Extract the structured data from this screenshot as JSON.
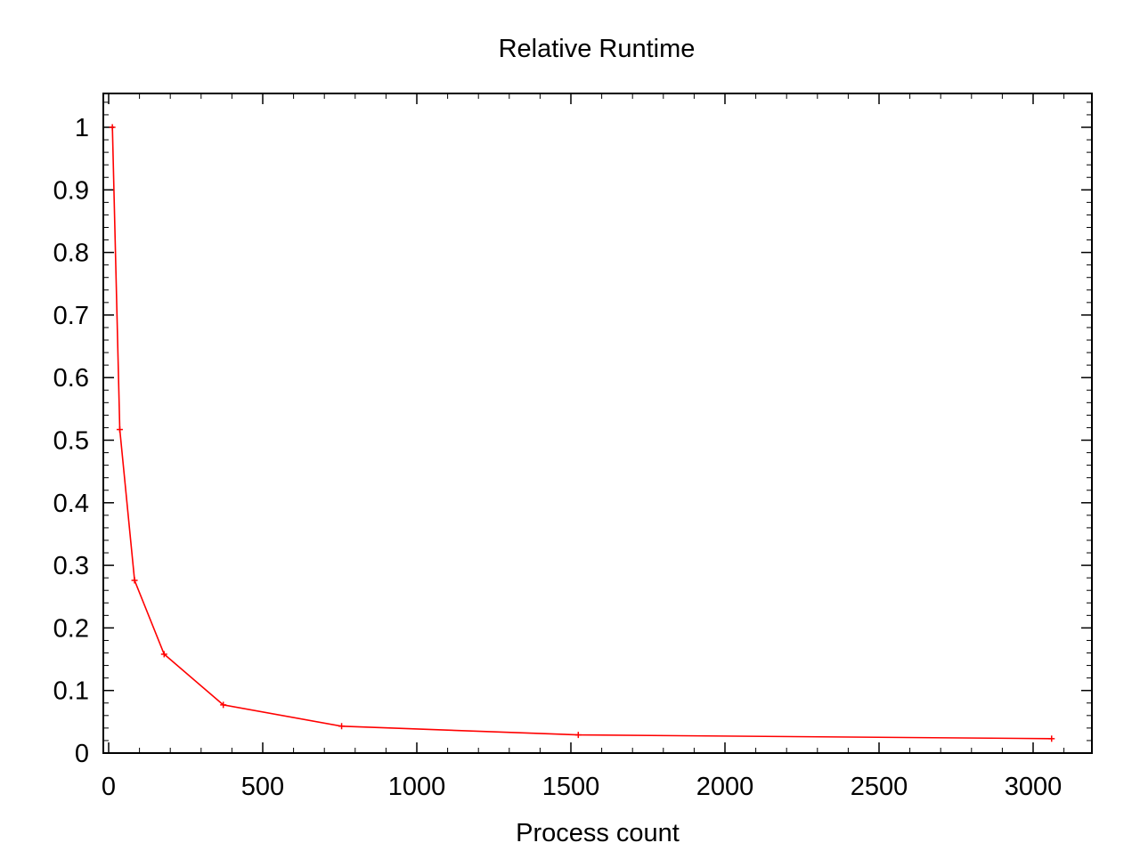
{
  "chart_data": {
    "type": "line",
    "title": "Relative Runtime",
    "xlabel": "Process count",
    "ylabel": "",
    "xlim": [
      0,
      3200
    ],
    "ylim": [
      0,
      1.05
    ],
    "grid": false,
    "x_ticks": [
      0,
      500,
      1000,
      1500,
      2000,
      2500,
      3000
    ],
    "x_tick_labels": [
      "0",
      "500",
      "1000",
      "1500",
      "2000",
      "2500",
      "3000"
    ],
    "y_ticks": [
      0,
      0.1,
      0.2,
      0.3,
      0.4,
      0.5,
      0.6,
      0.7,
      0.8,
      0.9,
      1
    ],
    "y_tick_labels": [
      "0",
      "0.1",
      "0.2",
      "0.3",
      "0.4",
      "0.5",
      "0.6",
      "0.7",
      "0.8",
      "0.9",
      "1"
    ],
    "series": [
      {
        "color": "#ff0000",
        "marker": "plus",
        "x": [
          12,
          36,
          84,
          180,
          372,
          756,
          1524,
          3060
        ],
        "y": [
          1.0,
          0.517,
          0.276,
          0.158,
          0.077,
          0.043,
          0.029,
          0.023
        ]
      }
    ]
  }
}
